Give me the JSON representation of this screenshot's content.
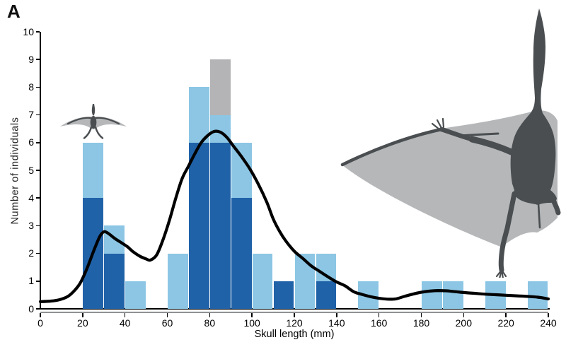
{
  "figure": {
    "panel_label": "A"
  },
  "colors": {
    "background": "#ffffff",
    "axis": "#000000",
    "axis_shadow": "#8f9193",
    "text": "#000000",
    "silhouette_body": "#4a4e50",
    "silhouette_membrane": "#b5b7b9"
  },
  "chart_data": {
    "type": "bar",
    "subtype": "stacked-histogram-with-kde-curve",
    "title": "",
    "xlabel": "Skull length (mm)",
    "ylabel": "Number of individuals",
    "xlim": [
      0,
      240
    ],
    "ylim": [
      0,
      10
    ],
    "x_ticks": [
      0,
      20,
      40,
      60,
      80,
      100,
      120,
      140,
      160,
      180,
      200,
      220,
      240
    ],
    "y_ticks": [
      0,
      1,
      2,
      3,
      4,
      5,
      6,
      7,
      8,
      9,
      10
    ],
    "grid": false,
    "legend": "none",
    "bin_width": 10,
    "series": [
      {
        "name": "dark_blue",
        "color": "#2062a8"
      },
      {
        "name": "light_blue",
        "color": "#8cc6e4"
      },
      {
        "name": "gray",
        "color": "#b4b4b6"
      }
    ],
    "bars": [
      {
        "bin_start": 20,
        "counts": [
          4,
          2,
          0
        ],
        "total": 6
      },
      {
        "bin_start": 30,
        "counts": [
          2,
          1,
          0
        ],
        "total": 3
      },
      {
        "bin_start": 40,
        "counts": [
          0,
          1,
          0
        ],
        "total": 1
      },
      {
        "bin_start": 60,
        "counts": [
          0,
          2,
          0
        ],
        "total": 2
      },
      {
        "bin_start": 70,
        "counts": [
          6,
          2,
          0
        ],
        "total": 8
      },
      {
        "bin_start": 80,
        "counts": [
          6,
          1,
          2
        ],
        "total": 9
      },
      {
        "bin_start": 90,
        "counts": [
          4,
          2,
          0
        ],
        "total": 6
      },
      {
        "bin_start": 100,
        "counts": [
          0,
          2,
          0
        ],
        "total": 2
      },
      {
        "bin_start": 110,
        "counts": [
          1,
          0,
          0
        ],
        "total": 1
      },
      {
        "bin_start": 120,
        "counts": [
          0,
          2,
          0
        ],
        "total": 2
      },
      {
        "bin_start": 130,
        "counts": [
          1,
          1,
          0
        ],
        "total": 2
      },
      {
        "bin_start": 150,
        "counts": [
          0,
          1,
          0
        ],
        "total": 1
      },
      {
        "bin_start": 180,
        "counts": [
          0,
          1,
          0
        ],
        "total": 1
      },
      {
        "bin_start": 190,
        "counts": [
          0,
          1,
          0
        ],
        "total": 1
      },
      {
        "bin_start": 210,
        "counts": [
          0,
          1,
          0
        ],
        "total": 1
      },
      {
        "bin_start": 230,
        "counts": [
          0,
          1,
          0
        ],
        "total": 1
      }
    ],
    "kde_curve": {
      "color": "#000000",
      "stroke_width": 4.2,
      "points": [
        [
          0,
          0.26
        ],
        [
          5,
          0.28
        ],
        [
          9,
          0.33
        ],
        [
          13,
          0.45
        ],
        [
          16,
          0.65
        ],
        [
          19,
          0.95
        ],
        [
          22,
          1.45
        ],
        [
          25,
          2.05
        ],
        [
          28,
          2.6
        ],
        [
          30,
          2.78
        ],
        [
          32,
          2.73
        ],
        [
          35,
          2.55
        ],
        [
          38,
          2.4
        ],
        [
          41,
          2.25
        ],
        [
          44,
          2.05
        ],
        [
          47,
          1.9
        ],
        [
          50,
          1.8
        ],
        [
          52,
          1.76
        ],
        [
          55,
          1.95
        ],
        [
          58,
          2.5
        ],
        [
          61,
          3.2
        ],
        [
          64,
          4.0
        ],
        [
          67,
          4.7
        ],
        [
          70,
          5.15
        ],
        [
          73,
          5.6
        ],
        [
          76,
          6.0
        ],
        [
          79,
          6.25
        ],
        [
          82,
          6.4
        ],
        [
          85,
          6.38
        ],
        [
          88,
          6.2
        ],
        [
          91,
          5.9
        ],
        [
          95,
          5.5
        ],
        [
          99,
          5.05
        ],
        [
          103,
          4.5
        ],
        [
          107,
          3.85
        ],
        [
          110,
          3.25
        ],
        [
          113,
          2.8
        ],
        [
          116,
          2.45
        ],
        [
          120,
          2.08
        ],
        [
          124,
          1.82
        ],
        [
          128,
          1.55
        ],
        [
          132,
          1.35
        ],
        [
          136,
          1.15
        ],
        [
          140,
          0.97
        ],
        [
          144,
          0.83
        ],
        [
          148,
          0.62
        ],
        [
          152,
          0.52
        ],
        [
          156,
          0.44
        ],
        [
          160,
          0.38
        ],
        [
          164,
          0.35
        ],
        [
          168,
          0.36
        ],
        [
          172,
          0.45
        ],
        [
          176,
          0.53
        ],
        [
          180,
          0.6
        ],
        [
          184,
          0.64
        ],
        [
          188,
          0.66
        ],
        [
          192,
          0.65
        ],
        [
          196,
          0.62
        ],
        [
          200,
          0.59
        ],
        [
          205,
          0.56
        ],
        [
          210,
          0.53
        ],
        [
          215,
          0.51
        ],
        [
          220,
          0.49
        ],
        [
          225,
          0.47
        ],
        [
          230,
          0.45
        ],
        [
          235,
          0.42
        ],
        [
          240,
          0.36
        ]
      ]
    }
  },
  "decorations": {
    "small_pterosaur_icon": "pterosaur-dorsal-silhouette-small",
    "large_pterosaur_icon": "pterosaur-dorsal-silhouette-large-partial"
  }
}
